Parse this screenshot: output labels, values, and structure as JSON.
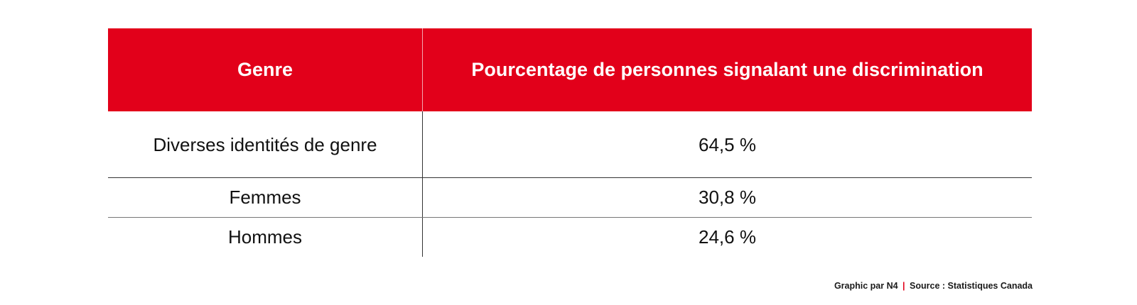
{
  "chart_data": {
    "type": "table",
    "columns": [
      "Genre",
      "Pourcentage de personnes signalant une discrimination"
    ],
    "rows": [
      [
        "Diverses identités de genre",
        "64,5 %"
      ],
      [
        "Femmes",
        "30,8 %"
      ],
      [
        "Hommes",
        "24,6 %"
      ]
    ],
    "values": [
      64.5,
      30.8,
      24.6
    ]
  },
  "footer": {
    "credit": "Graphic par N4",
    "separator": "|",
    "source": "Source : Statistiques Canada"
  },
  "colors": {
    "header_background": "#e2001a",
    "header_text": "#ffffff",
    "separator_accent": "#e2001a"
  }
}
